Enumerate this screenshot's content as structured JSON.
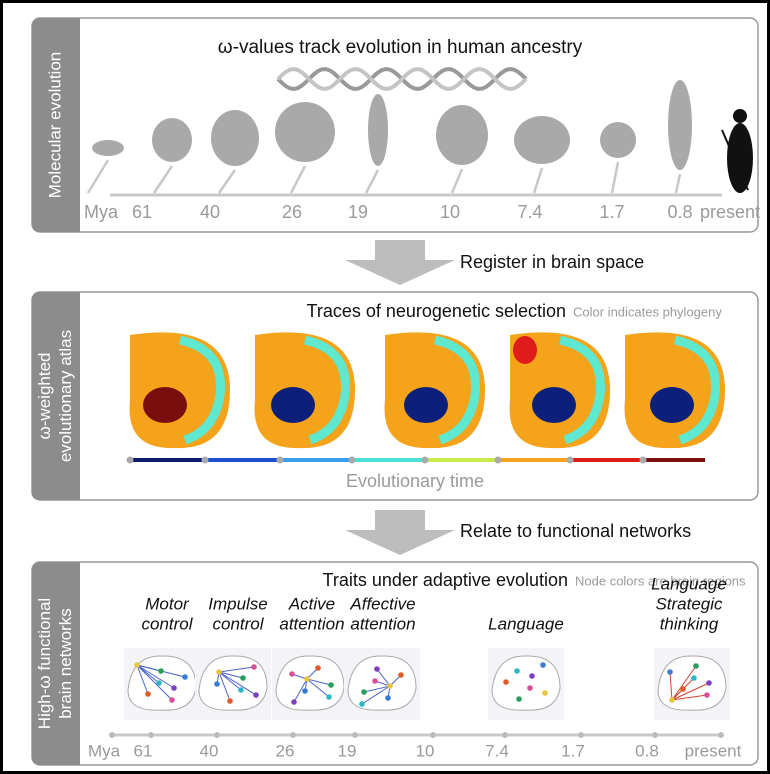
{
  "panels": [
    {
      "tab": [
        "Molecular evolution"
      ],
      "title": "ω-values track evolution in human ancestry",
      "timeline": [
        "Mya",
        "61",
        "40",
        "26",
        "19",
        "10",
        "7.4",
        "1.7",
        "0.8",
        "present"
      ]
    },
    {
      "tab": [
        "ω-weighted",
        "evolutionary atlas"
      ],
      "title": "Traces of neurogenetic selection",
      "note": "Color indicates phylogeny",
      "axis_label": "Evolutionary time"
    },
    {
      "tab": [
        "High-ω functional",
        "brain networks"
      ],
      "title": "Traits under adaptive evolution",
      "note": "Node colors are brain regions",
      "traits": [
        [
          "Motor",
          "control"
        ],
        [
          "Impulse",
          "control"
        ],
        [
          "Active",
          "attention"
        ],
        [
          "Affective",
          "attention"
        ],
        [
          "Language"
        ],
        [
          "Language",
          "Strategic",
          "thinking"
        ]
      ],
      "timeline": [
        "Mya",
        "61",
        "40",
        "26",
        "19",
        "10",
        "7.4",
        "1.7",
        "0.8",
        "present"
      ]
    }
  ],
  "arrows": [
    "Register in brain space",
    "Relate to functional networks"
  ]
}
